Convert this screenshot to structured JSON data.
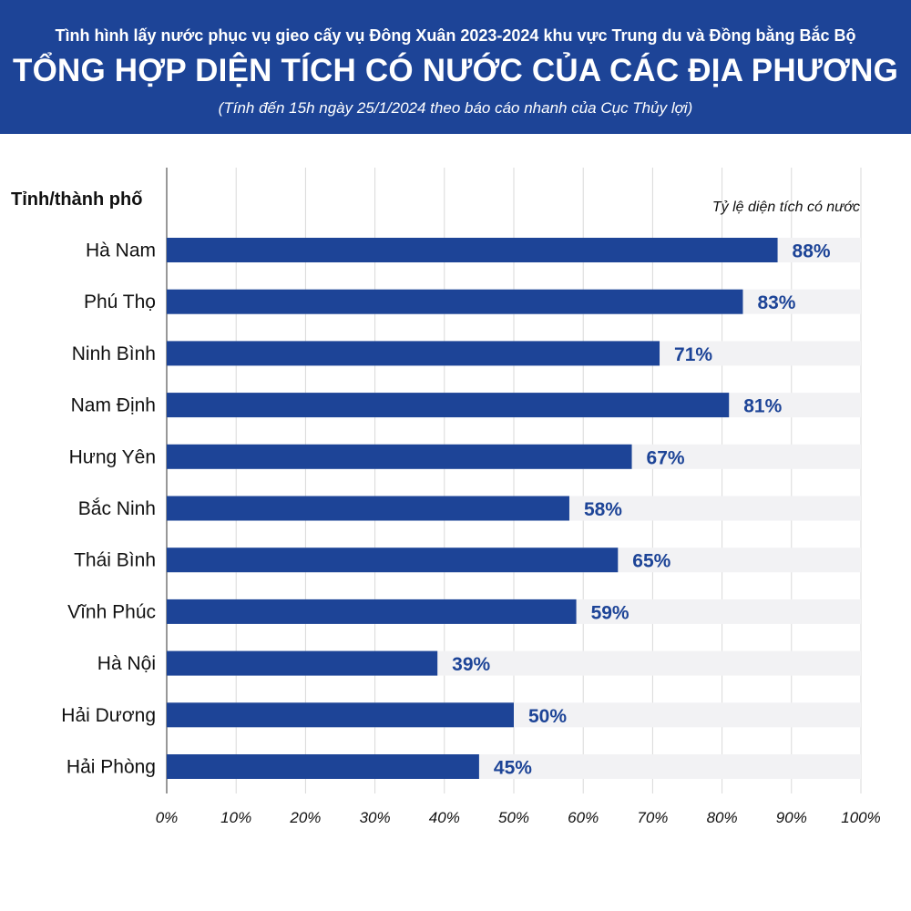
{
  "header": {
    "supertitle": "Tình hình lấy nước phục vụ gieo cấy vụ Đông Xuân 2023-2024 khu vực Trung du và Đồng bằng Bắc Bộ",
    "title": "TỔNG HỢP DIỆN TÍCH CÓ NƯỚC CỦA CÁC ĐỊA PHƯƠNG",
    "subtitle": "(Tính đến 15h ngày 25/1/2024 theo báo cáo nhanh của Cục Thủy lợi)"
  },
  "colors": {
    "header_bg": "#1d4497",
    "bar": "#1d4497",
    "value_label": "#1d4497",
    "track": "#f2f2f4",
    "grid": "#d9d9d9"
  },
  "chart_data": {
    "type": "bar",
    "orientation": "horizontal",
    "category_axis_title": "Tỉnh/thành phố",
    "value_axis_title": "Tỷ lệ diện tích có nước",
    "categories": [
      "Hà Nam",
      "Phú Thọ",
      "Ninh Bình",
      "Nam Định",
      "Hưng Yên",
      "Bắc Ninh",
      "Thái Bình",
      "Vĩnh Phúc",
      "Hà Nội",
      "Hải Dương",
      "Hải Phòng"
    ],
    "values": [
      88,
      83,
      71,
      81,
      67,
      58,
      65,
      59,
      39,
      50,
      45
    ],
    "value_labels": [
      "88%",
      "83%",
      "71%",
      "81%",
      "67%",
      "58%",
      "65%",
      "59%",
      "39%",
      "50%",
      "45%"
    ],
    "xlim": [
      0,
      100
    ],
    "ticks": [
      "0%",
      "10%",
      "20%",
      "30%",
      "40%",
      "50%",
      "60%",
      "70%",
      "80%",
      "90%",
      "100%"
    ],
    "grid": true
  }
}
